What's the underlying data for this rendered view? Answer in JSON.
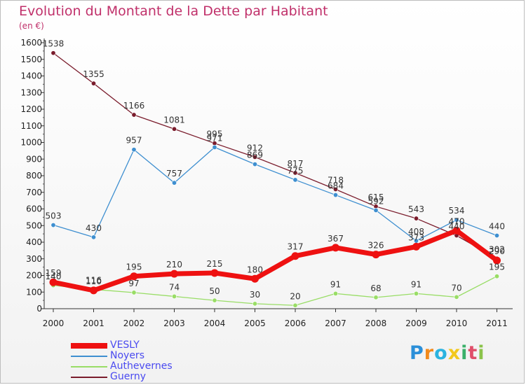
{
  "chart_data": {
    "type": "line",
    "title": "Evolution du Montant de la Dette par Habitant",
    "subtitle": "(en €)",
    "categories": [
      "2000",
      "2001",
      "2002",
      "2003",
      "2004",
      "2005",
      "2006",
      "2007",
      "2008",
      "2009",
      "2010",
      "2011"
    ],
    "yticks": [
      "0",
      "100",
      "200",
      "300",
      "400",
      "500",
      "600",
      "700",
      "800",
      "900",
      "1000",
      "1100",
      "1200",
      "1300",
      "1400",
      "1500",
      "1600"
    ],
    "ylim": [
      0,
      1600
    ],
    "grid": false,
    "legend_position": "bottom-left",
    "series": [
      {
        "name": "Guerny",
        "color": "#7a1c2c",
        "values": [
          1538,
          1355,
          1166,
          1081,
          995,
          912,
          817,
          718,
          615,
          543,
          440,
          302
        ]
      },
      {
        "name": "Noyers",
        "color": "#3e8fd0",
        "values": [
          503,
          430,
          957,
          757,
          971,
          869,
          775,
          684,
          592,
          408,
          534,
          440
        ]
      },
      {
        "name": "Authevernes",
        "color": "#99dd66",
        "values": [
          140,
          116,
          97,
          74,
          50,
          30,
          20,
          91,
          68,
          91,
          70,
          195
        ]
      },
      {
        "name": "VESLY",
        "color": "#ee1111",
        "values": [
          159,
          110,
          195,
          210,
          215,
          180,
          317,
          367,
          326,
          373,
          470,
          290
        ]
      }
    ]
  },
  "legend": [
    {
      "name": "VESLY",
      "color": "#ee1111"
    },
    {
      "name": "Noyers",
      "color": "#3e8fd0"
    },
    {
      "name": "Authevernes",
      "color": "#99dd66"
    },
    {
      "name": "Guerny",
      "color": "#7a1c2c"
    }
  ],
  "logo": {
    "text": "Proxiti",
    "colors": [
      "#2b8fd9",
      "#f28a1c",
      "#2bb3e0",
      "#f2c81c",
      "#3ab06a",
      "#e04f6a",
      "#8bc34a"
    ]
  }
}
